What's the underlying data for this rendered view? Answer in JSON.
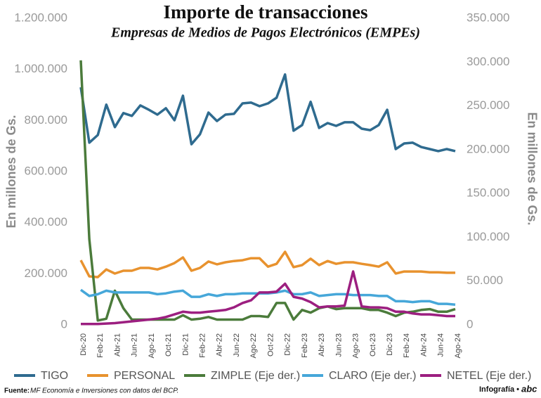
{
  "chart_data": {
    "type": "line",
    "title": "Importe de transacciones",
    "subtitle": "Empresas de Medios de Pagos Electrónicos (EMPEs)",
    "ylabel": "En millones de Gs.",
    "y2label": "En millones de Gs.",
    "categories": [
      "Dic-20",
      null,
      "Feb-21",
      null,
      "Abr-21",
      null,
      "Jun-21",
      null,
      "Ago-21",
      null,
      "Oct-21",
      null,
      "Dic-21",
      null,
      "Feb-22",
      null,
      "Abr-22",
      null,
      "Jun-22",
      null,
      "Ago-22",
      null,
      "Oct-22",
      null,
      "Dic-22",
      null,
      "Feb-23",
      null,
      "Abr-23",
      null,
      "Jun-23",
      null,
      "Ago-23",
      null,
      "Oct-23",
      null,
      "Dic-23",
      null,
      "Feb-24",
      null,
      "Abr-24",
      null,
      "Jun-24",
      null,
      "Ago-24"
    ],
    "ylim": [
      0,
      1200000
    ],
    "yticks": [
      0,
      {
        "value": 200000,
        "label": "200.000"
      },
      {
        "value": 400000,
        "label": "400.000"
      },
      {
        "value": 600000,
        "label": "600.000"
      },
      {
        "value": 800000,
        "label": "800.000"
      },
      {
        "value": 1000000,
        "label": "1.000.000"
      },
      {
        "value": 1200000,
        "label": "1.200.000"
      }
    ],
    "y2lim": [
      0,
      350000
    ],
    "y2ticks": [
      0,
      {
        "value": 50000,
        "label": "50.000"
      },
      {
        "value": 100000,
        "label": "100.000"
      },
      {
        "value": 150000,
        "label": "150.000"
      },
      {
        "value": 200000,
        "label": "200.000"
      },
      {
        "value": 250000,
        "label": "250.000"
      },
      {
        "value": 300000,
        "label": "300.000"
      },
      {
        "value": 350000,
        "label": "350.000"
      }
    ],
    "series": [
      {
        "name": "TIGO",
        "color": "#2f6b8f",
        "values": [
          930000,
          713000,
          743000,
          862000,
          774000,
          829000,
          818000,
          859000,
          842000,
          823000,
          848000,
          801000,
          897000,
          707000,
          746000,
          831000,
          798000,
          823000,
          826000,
          867000,
          870000,
          856000,
          867000,
          889000,
          980000,
          760000,
          782000,
          873000,
          771000,
          790000,
          779000,
          793000,
          793000,
          768000,
          762000,
          782000,
          842000,
          688000,
          710000,
          713000,
          696000,
          688000,
          680000,
          688000,
          680000
        ]
      },
      {
        "name": "PERSONAL",
        "color": "#e8922e",
        "values": [
          253000,
          190000,
          187000,
          217000,
          201000,
          212000,
          212000,
          223000,
          223000,
          217000,
          228000,
          242000,
          264000,
          212000,
          223000,
          248000,
          237000,
          245000,
          250000,
          253000,
          261000,
          261000,
          228000,
          239000,
          286000,
          226000,
          234000,
          259000,
          234000,
          250000,
          239000,
          245000,
          245000,
          239000,
          234000,
          228000,
          245000,
          201000,
          209000,
          209000,
          209000,
          206000,
          206000,
          204000,
          204000
        ]
      },
      {
        "name": "ZIMPLE (Eje der.)",
        "color": "#4b7b3b",
        "axis": "y2",
        "values": [
          302000,
          98000,
          5000,
          7000,
          39000,
          19000,
          6000,
          6000,
          6000,
          6000,
          6000,
          6000,
          11000,
          6000,
          7000,
          9000,
          6000,
          6000,
          6000,
          6000,
          10000,
          10000,
          9000,
          25000,
          25000,
          6000,
          17000,
          14000,
          19000,
          21000,
          18000,
          19000,
          19000,
          19000,
          17000,
          17000,
          14000,
          10000,
          14000,
          15000,
          17000,
          18000,
          15000,
          15000,
          18000
        ]
      },
      {
        "name": "CLARO (Eje der.)",
        "color": "#46a7d9",
        "axis": "y2",
        "values": [
          40000,
          33000,
          35000,
          39000,
          37000,
          37000,
          37000,
          37000,
          37000,
          35000,
          36000,
          38000,
          39000,
          32000,
          32000,
          35000,
          33000,
          35000,
          35000,
          36000,
          36000,
          36000,
          36000,
          37000,
          39000,
          35000,
          35000,
          37000,
          33000,
          34000,
          35000,
          35000,
          34000,
          34000,
          34000,
          33000,
          33000,
          27000,
          27000,
          26000,
          27000,
          27000,
          24000,
          24000,
          23000
        ]
      },
      {
        "name": "NETEL (Eje der.)",
        "color": "#9c1f80",
        "axis": "y2",
        "values": [
          1000,
          1000,
          1000,
          1500,
          2000,
          3000,
          4000,
          5000,
          6000,
          7000,
          9000,
          12000,
          15000,
          14000,
          14000,
          15000,
          16000,
          17000,
          20000,
          25000,
          28000,
          37000,
          37000,
          38000,
          47000,
          32000,
          30000,
          26000,
          20000,
          21000,
          21000,
          22000,
          61000,
          21000,
          20000,
          20000,
          19000,
          15000,
          15000,
          13000,
          12000,
          12000,
          11000,
          10000,
          10000
        ]
      }
    ],
    "source_label": "Fuente:",
    "source": "MF Economía e Inversiones con datos del BCP.",
    "credit": "Infografía •",
    "logo": "abc"
  }
}
